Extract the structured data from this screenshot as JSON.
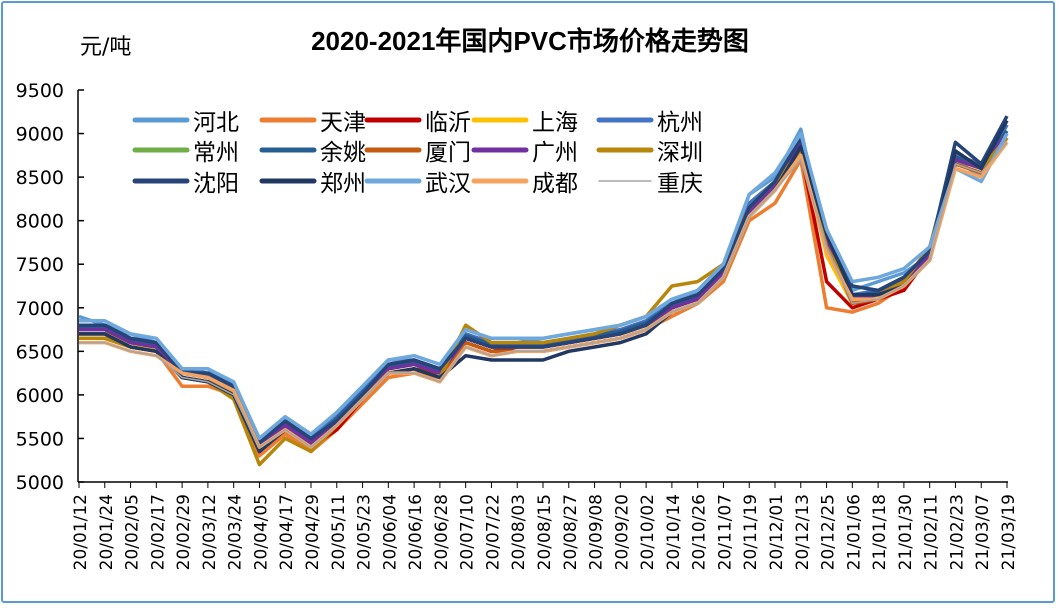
{
  "chart_data": {
    "type": "line",
    "title": "2020-2021年国内PVC市场价格走势图",
    "ylabel": "元/吨",
    "xlabel": "",
    "ylim": [
      5000,
      9500
    ],
    "yticks": [
      5000,
      5500,
      6000,
      6500,
      7000,
      7500,
      8000,
      8500,
      9000,
      9500
    ],
    "grid": false,
    "legend_position": "top-left",
    "x": [
      "20/01/12",
      "20/01/24",
      "20/02/05",
      "20/02/17",
      "20/02/29",
      "20/03/12",
      "20/03/24",
      "20/04/05",
      "20/04/17",
      "20/04/29",
      "20/05/11",
      "20/05/23",
      "20/06/04",
      "20/06/16",
      "20/06/28",
      "20/07/10",
      "20/07/22",
      "20/08/03",
      "20/08/15",
      "20/08/27",
      "20/09/08",
      "20/09/20",
      "20/10/02",
      "20/10/14",
      "20/10/26",
      "20/11/07",
      "20/11/19",
      "20/12/01",
      "20/12/13",
      "20/12/25",
      "21/01/06",
      "21/01/18",
      "21/01/30",
      "21/02/11",
      "21/02/23",
      "21/03/07",
      "21/03/19"
    ],
    "series": [
      {
        "name": "河北",
        "color": "#5b9bd5",
        "values": [
          6900,
          6800,
          6700,
          6600,
          6300,
          6300,
          6100,
          5500,
          5700,
          5500,
          5800,
          6100,
          6400,
          6400,
          6300,
          6700,
          6600,
          6600,
          6650,
          6700,
          6750,
          6800,
          6900,
          7050,
          7200,
          7500,
          8300,
          8500,
          9050,
          7700,
          7200,
          7300,
          7400,
          7600,
          8700,
          8500,
          9100
        ]
      },
      {
        "name": "天津",
        "color": "#ed7d31",
        "values": [
          6650,
          6650,
          6550,
          6500,
          6100,
          6100,
          6000,
          5300,
          5550,
          5350,
          5600,
          5900,
          6200,
          6250,
          6200,
          6550,
          6450,
          6500,
          6500,
          6550,
          6600,
          6650,
          6750,
          6900,
          7050,
          7300,
          8000,
          8200,
          8700,
          7000,
          6950,
          7050,
          7250,
          7550,
          8650,
          8550,
          8900
        ]
      },
      {
        "name": "临沂",
        "color": "#c00000",
        "values": [
          6700,
          6700,
          6600,
          6550,
          6200,
          6150,
          6050,
          5350,
          5600,
          5400,
          5600,
          5950,
          6250,
          6300,
          6250,
          6600,
          6500,
          6550,
          6550,
          6600,
          6650,
          6700,
          6800,
          7000,
          7100,
          7400,
          8100,
          8350,
          8800,
          7300,
          7000,
          7100,
          7200,
          7600,
          8700,
          8600,
          8950
        ]
      },
      {
        "name": "上海",
        "color": "#ffc000",
        "values": [
          6700,
          6700,
          6600,
          6500,
          6250,
          6200,
          6000,
          5400,
          5600,
          5450,
          5650,
          6000,
          6300,
          6350,
          6250,
          6650,
          6550,
          6550,
          6550,
          6600,
          6650,
          6700,
          6800,
          7000,
          7100,
          7400,
          8100,
          8400,
          8850,
          7600,
          7050,
          7150,
          7300,
          7650,
          8700,
          8600,
          9000
        ]
      },
      {
        "name": "杭州",
        "color": "#4472c4",
        "values": [
          6800,
          6800,
          6650,
          6600,
          6300,
          6250,
          6100,
          5450,
          5700,
          5500,
          5750,
          6050,
          6350,
          6400,
          6300,
          6700,
          6600,
          6600,
          6600,
          6650,
          6700,
          6750,
          6850,
          7050,
          7150,
          7450,
          8200,
          8450,
          8950,
          7850,
          7150,
          7200,
          7350,
          7650,
          8750,
          8650,
          9100
        ]
      },
      {
        "name": "常州",
        "color": "#70ad47",
        "values": [
          6750,
          6750,
          6600,
          6550,
          6250,
          6200,
          6050,
          5400,
          5650,
          5450,
          5700,
          6000,
          6300,
          6350,
          6250,
          6650,
          6550,
          6550,
          6550,
          6600,
          6650,
          6700,
          6800,
          7000,
          7100,
          7400,
          8100,
          8400,
          8900,
          7800,
          7100,
          7150,
          7300,
          7600,
          8700,
          8600,
          9000
        ]
      },
      {
        "name": "余姚",
        "color": "#255e91",
        "values": [
          6780,
          6780,
          6630,
          6580,
          6280,
          6230,
          6080,
          5430,
          5680,
          5480,
          5730,
          6030,
          6330,
          6380,
          6280,
          6680,
          6580,
          6580,
          6580,
          6630,
          6680,
          6730,
          6830,
          7030,
          7130,
          7430,
          8130,
          8430,
          8930,
          7830,
          7130,
          7180,
          7330,
          7630,
          8730,
          8630,
          9030
        ]
      },
      {
        "name": "厦门",
        "color": "#c55a11",
        "values": [
          6700,
          6700,
          6550,
          6500,
          6200,
          6150,
          6000,
          5350,
          5600,
          5400,
          5650,
          5950,
          6250,
          6300,
          6200,
          6600,
          6500,
          6500,
          6500,
          6550,
          6600,
          6650,
          6750,
          6950,
          7050,
          7350,
          8050,
          8350,
          8850,
          7750,
          7050,
          7100,
          7250,
          7550,
          8650,
          8550,
          8950
        ]
      },
      {
        "name": "广州",
        "color": "#7030a0",
        "values": [
          6750,
          6750,
          6600,
          6550,
          6250,
          6200,
          6050,
          5400,
          5650,
          5450,
          5700,
          6000,
          6300,
          6350,
          6250,
          6650,
          6550,
          6550,
          6550,
          6600,
          6650,
          6700,
          6800,
          7000,
          7100,
          7400,
          8100,
          8400,
          8900,
          7800,
          7100,
          7150,
          7300,
          7600,
          8700,
          8600,
          9000
        ]
      },
      {
        "name": "深圳",
        "color": "#b8860b",
        "values": [
          6650,
          6650,
          6550,
          6500,
          6200,
          6150,
          5950,
          5200,
          5500,
          5350,
          5650,
          5950,
          6250,
          6300,
          6200,
          6800,
          6600,
          6600,
          6600,
          6650,
          6700,
          6800,
          6900,
          7250,
          7300,
          7500,
          8150,
          8450,
          8800,
          7700,
          7150,
          7150,
          7300,
          7700,
          8800,
          8600,
          8950
        ]
      },
      {
        "name": "沈阳",
        "color": "#264478",
        "values": [
          6800,
          6800,
          6650,
          6600,
          6250,
          6250,
          6100,
          5450,
          5700,
          5500,
          5700,
          6000,
          6350,
          6400,
          6300,
          6650,
          6550,
          6550,
          6550,
          6600,
          6650,
          6700,
          6800,
          7050,
          7150,
          7450,
          8150,
          8450,
          8950,
          7900,
          7250,
          7200,
          7350,
          7650,
          8900,
          8650,
          9200
        ]
      },
      {
        "name": "郑州",
        "color": "#1f3864",
        "values": [
          6700,
          6700,
          6550,
          6500,
          6200,
          6150,
          6000,
          5350,
          5600,
          5400,
          5650,
          5950,
          6250,
          6300,
          6200,
          6450,
          6400,
          6400,
          6400,
          6500,
          6550,
          6600,
          6700,
          6950,
          7050,
          7350,
          8050,
          8350,
          8850,
          7850,
          7150,
          7150,
          7250,
          7550,
          8800,
          8600,
          9150
        ]
      },
      {
        "name": "武汉",
        "color": "#6fa8dc",
        "values": [
          6850,
          6850,
          6700,
          6650,
          6300,
          6300,
          6150,
          5500,
          5750,
          5550,
          5800,
          6100,
          6400,
          6450,
          6350,
          6750,
          6650,
          6650,
          6650,
          6700,
          6750,
          6800,
          6900,
          7100,
          7200,
          7500,
          8300,
          8550,
          9000,
          7900,
          7300,
          7350,
          7450,
          7700,
          8600,
          8450,
          9000
        ]
      },
      {
        "name": "成都",
        "color": "#f4a460",
        "values": [
          6600,
          6600,
          6500,
          6450,
          6250,
          6200,
          6050,
          5400,
          5600,
          5400,
          5650,
          5950,
          6250,
          6250,
          6150,
          6550,
          6450,
          6500,
          6500,
          6550,
          6600,
          6650,
          6750,
          6950,
          7050,
          7350,
          8050,
          8350,
          8750,
          7650,
          7100,
          7100,
          7250,
          7550,
          8600,
          8500,
          8900
        ]
      },
      {
        "name": "重庆",
        "color": "#a5a5a5",
        "values": [
          6600,
          6600,
          6500,
          6450,
          6200,
          6150,
          6000,
          5400,
          5600,
          5400,
          5650,
          5950,
          6250,
          6250,
          6150,
          6550,
          6450,
          6500,
          6500,
          6550,
          6600,
          6650,
          6750,
          6950,
          7050,
          7350,
          8050,
          8350,
          8700,
          7700,
          7050,
          7100,
          7250,
          7550,
          8650,
          8550,
          8900
        ]
      }
    ]
  }
}
